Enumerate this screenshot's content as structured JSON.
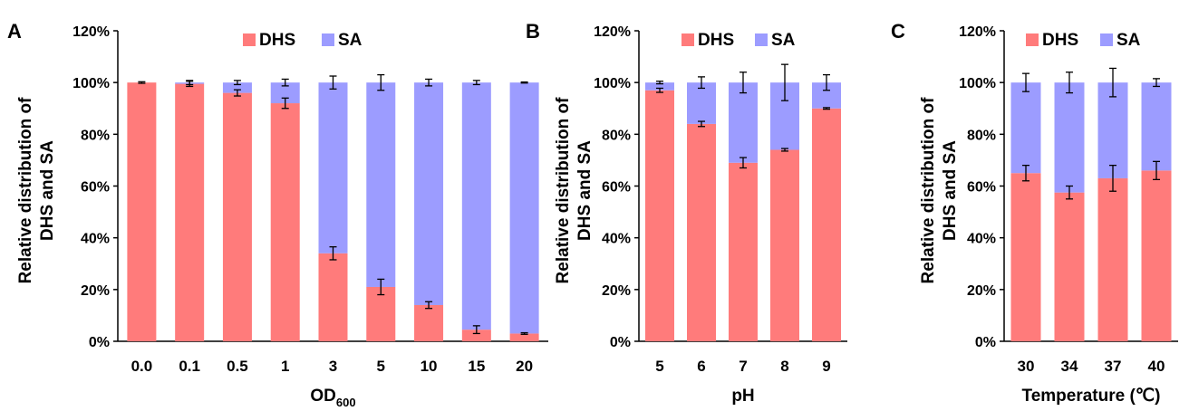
{
  "colors": {
    "DHS": "#ff7b7b",
    "SA": "#9c9cff",
    "axis": "#000000"
  },
  "chart_data": [
    {
      "panel": "A",
      "type": "bar",
      "stacked": true,
      "percent": true,
      "ylabel_line1": "Relative distribution of",
      "ylabel_line2": "DHS and SA",
      "xlabel_main": "OD",
      "xlabel_sub": "600",
      "ylim": [
        0,
        120
      ],
      "yticks": [
        "0%",
        "20%",
        "40%",
        "60%",
        "80%",
        "100%",
        "120%"
      ],
      "legend": [
        "DHS",
        "SA"
      ],
      "legend_position": "top",
      "categories": [
        "0.0",
        "0.1",
        "0.5",
        "1",
        "3",
        "5",
        "10",
        "15",
        "20"
      ],
      "series": [
        {
          "name": "DHS",
          "values": [
            100,
            99.5,
            96,
            92,
            34,
            21,
            14,
            4.5,
            3
          ],
          "err": [
            0.3,
            1,
            1.2,
            2,
            2.5,
            3,
            1.3,
            1.5,
            0.3
          ]
        },
        {
          "name": "SA",
          "values": [
            0,
            0.5,
            4,
            8,
            66,
            79,
            86,
            95.5,
            97
          ],
          "err": [
            0,
            0.8,
            0.8,
            1.3,
            2.5,
            3,
            1.3,
            0.8,
            0.2
          ]
        }
      ]
    },
    {
      "panel": "B",
      "type": "bar",
      "stacked": true,
      "percent": true,
      "ylabel_line1": "Relative distribution of",
      "ylabel_line2": "DHS and SA",
      "xlabel_main": "pH",
      "xlabel_sub": "",
      "ylim": [
        0,
        120
      ],
      "yticks": [
        "0%",
        "20%",
        "40%",
        "60%",
        "80%",
        "100%",
        "120%"
      ],
      "legend": [
        "DHS",
        "SA"
      ],
      "legend_position": "top",
      "categories": [
        "5",
        "6",
        "7",
        "8",
        "9"
      ],
      "series": [
        {
          "name": "DHS",
          "values": [
            97,
            84,
            69,
            74,
            90
          ],
          "err": [
            0.8,
            1,
            2,
            0.5,
            0.3
          ]
        },
        {
          "name": "SA",
          "values": [
            3,
            16,
            31,
            26,
            10
          ],
          "err": [
            0.5,
            2.2,
            4,
            7,
            3
          ]
        }
      ]
    },
    {
      "panel": "C",
      "type": "bar",
      "stacked": true,
      "percent": true,
      "ylabel_line1": "Relative distribution of",
      "ylabel_line2": "DHS and SA",
      "xlabel_main": "Temperature (℃)",
      "xlabel_sub": "",
      "ylim": [
        0,
        120
      ],
      "yticks": [
        "0%",
        "20%",
        "40%",
        "60%",
        "80%",
        "100%",
        "120%"
      ],
      "legend": [
        "DHS",
        "SA"
      ],
      "legend_position": "top",
      "categories": [
        "30",
        "34",
        "37",
        "40"
      ],
      "series": [
        {
          "name": "DHS",
          "values": [
            65,
            57.5,
            63,
            66
          ],
          "err": [
            3,
            2.5,
            5,
            3.5
          ]
        },
        {
          "name": "SA",
          "values": [
            35,
            42.5,
            37,
            34
          ],
          "err": [
            3.5,
            4,
            5.5,
            1.5
          ]
        }
      ]
    }
  ]
}
